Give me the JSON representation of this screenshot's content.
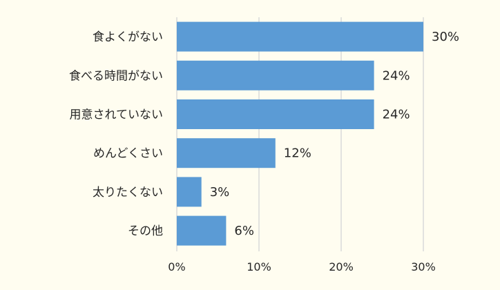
{
  "chart_data": {
    "type": "bar",
    "orientation": "horizontal",
    "categories": [
      "食よくがない",
      "食べる時間がない",
      "用意されていない",
      "めんどくさい",
      "太りたくない",
      "その他"
    ],
    "values": [
      30,
      24,
      24,
      12,
      3,
      6
    ],
    "value_labels": [
      "30%",
      "24%",
      "24%",
      "12%",
      "3%",
      "6%"
    ],
    "x_ticks": [
      0,
      10,
      20,
      30
    ],
    "x_tick_labels": [
      "0%",
      "10%",
      "20%",
      "30%"
    ],
    "xlim": [
      0,
      30
    ],
    "grid": "vertical",
    "legend": "none",
    "title": "",
    "xlabel": "",
    "ylabel": "",
    "colors": {
      "bar": "#5b9bd5",
      "grid": "#d9d9d9",
      "text": "#262626",
      "background": "#fffdf0"
    }
  }
}
